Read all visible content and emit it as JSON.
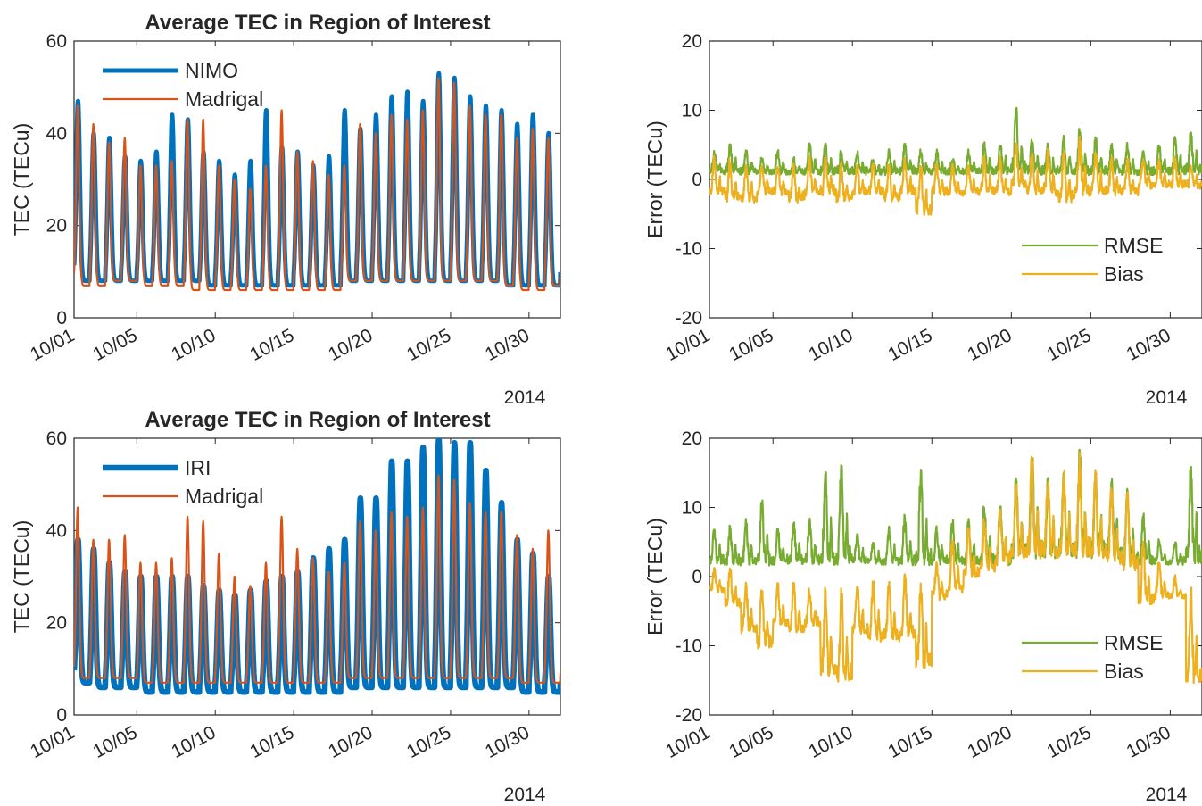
{
  "chart_data": [
    {
      "type": "line",
      "title": "Average TEC in Region of Interest",
      "ylabel": "TEC (TECu)",
      "xlabel": "",
      "x_year": "2014",
      "xlim": [
        "2014-10-01",
        "2014-11-01"
      ],
      "ylim": [
        0,
        60
      ],
      "yticks": [
        "0",
        "20",
        "40",
        "60"
      ],
      "xtick_labels": [
        "10/01",
        "10/05",
        "10/10",
        "10/15",
        "10/20",
        "10/25",
        "10/30"
      ],
      "xtick_days": [
        1,
        5,
        10,
        15,
        20,
        25,
        30
      ],
      "legend_position": "top-left",
      "series": [
        {
          "name": "NIMO",
          "color": "#0072BD",
          "daily_peak": [
            47,
            40,
            39,
            35,
            34,
            36,
            44,
            43,
            36,
            34,
            31,
            34,
            45,
            37,
            36,
            33,
            35,
            45,
            41,
            44,
            48,
            49,
            47,
            53,
            52,
            48,
            46,
            45,
            42,
            44,
            40
          ],
          "daily_min": [
            8,
            8,
            8,
            8,
            8,
            8,
            8,
            8,
            7,
            7,
            7,
            7,
            7,
            7,
            7,
            7,
            7,
            8,
            8,
            8,
            8,
            8,
            8,
            8,
            8,
            8,
            8,
            7,
            7,
            7,
            7
          ]
        },
        {
          "name": "Madrigal",
          "color": "#D95319",
          "daily_peak": [
            46,
            42,
            38,
            39,
            33,
            33,
            34,
            43,
            43,
            33,
            30,
            28,
            33,
            45,
            36,
            34,
            31,
            33,
            42,
            40,
            44,
            43,
            45,
            52,
            51,
            46,
            44,
            44,
            39,
            41,
            39
          ],
          "daily_min": [
            7,
            7,
            8,
            8,
            7,
            7,
            7,
            6,
            6,
            6,
            6,
            6,
            6,
            6,
            6,
            6,
            6,
            8,
            8,
            8,
            8,
            8,
            8,
            8,
            8,
            8,
            8,
            7,
            6,
            6,
            7
          ]
        }
      ]
    },
    {
      "type": "line",
      "title": "",
      "ylabel": "Error (TECu)",
      "xlabel": "",
      "x_year": "2014",
      "xlim": [
        "2014-10-01",
        "2014-11-01"
      ],
      "ylim": [
        -20,
        20
      ],
      "yticks": [
        "-20",
        "-10",
        "0",
        "10",
        "20"
      ],
      "xtick_labels": [
        "10/01",
        "10/05",
        "10/10",
        "10/15",
        "10/20",
        "10/25",
        "10/30"
      ],
      "xtick_days": [
        1,
        5,
        10,
        15,
        20,
        25,
        30
      ],
      "legend_position": "bottom-right",
      "series": [
        {
          "name": "RMSE",
          "color": "#77AC30",
          "daily_peak": [
            4,
            5,
            4,
            3,
            4,
            3,
            5,
            5,
            4,
            4,
            3,
            4,
            5,
            4,
            4,
            3,
            4,
            5,
            5,
            10,
            6,
            5,
            6,
            7,
            6,
            5,
            5,
            4,
            5,
            6,
            7
          ],
          "daily_min": [
            1,
            1,
            1,
            1,
            1,
            1,
            1,
            1,
            1,
            1,
            1,
            1,
            1,
            1,
            1,
            1,
            1,
            1,
            1,
            1,
            1,
            1,
            1,
            1,
            1,
            1,
            1,
            1,
            1,
            1,
            1
          ]
        },
        {
          "name": "Bias",
          "color": "#EDB120",
          "daily_peak": [
            3,
            3,
            2,
            2,
            2,
            2,
            3,
            3,
            2,
            2,
            2,
            2,
            3,
            2,
            2,
            2,
            2,
            3,
            3,
            5,
            4,
            4,
            4,
            6,
            4,
            3,
            3,
            3,
            3,
            3,
            2
          ],
          "daily_min": [
            -2,
            -3,
            -3,
            -2,
            -2,
            -3,
            -2,
            -2,
            -3,
            -2,
            -2,
            -3,
            -2,
            -5,
            -2,
            -2,
            -2,
            -2,
            -2,
            -1,
            -2,
            -2,
            -3,
            -2,
            -2,
            -2,
            -2,
            -1,
            -1,
            -1,
            -1
          ]
        }
      ]
    },
    {
      "type": "line",
      "title": "Average TEC in Region of Interest",
      "ylabel": "TEC (TECu)",
      "xlabel": "",
      "x_year": "2014",
      "xlim": [
        "2014-10-01",
        "2014-11-01"
      ],
      "ylim": [
        0,
        60
      ],
      "yticks": [
        "0",
        "20",
        "40",
        "60"
      ],
      "xtick_labels": [
        "10/01",
        "10/05",
        "10/10",
        "10/15",
        "10/20",
        "10/25",
        "10/30"
      ],
      "xtick_days": [
        1,
        5,
        10,
        15,
        20,
        25,
        30
      ],
      "legend_position": "top-left",
      "series": [
        {
          "name": "IRI",
          "color": "#0072BD",
          "daily_peak": [
            38,
            36,
            33,
            31,
            30,
            30,
            30,
            30,
            28,
            27,
            26,
            27,
            29,
            30,
            31,
            34,
            36,
            38,
            47,
            47,
            55,
            55,
            58,
            60,
            59,
            59,
            53,
            46,
            38,
            35,
            30
          ],
          "daily_min": [
            7,
            6,
            6,
            6,
            5,
            5,
            5,
            5,
            5,
            5,
            5,
            5,
            5,
            5,
            5,
            5,
            5,
            6,
            6,
            6,
            6,
            6,
            6,
            6,
            6,
            6,
            6,
            6,
            5,
            5,
            5
          ]
        },
        {
          "name": "Madrigal",
          "color": "#D95319",
          "daily_peak": [
            45,
            38,
            38,
            39,
            33,
            33,
            34,
            43,
            42,
            35,
            30,
            28,
            33,
            43,
            36,
            34,
            31,
            33,
            42,
            40,
            44,
            43,
            45,
            52,
            51,
            46,
            44,
            44,
            39,
            36,
            40
          ],
          "daily_min": [
            8,
            8,
            8,
            8,
            7,
            7,
            7,
            7,
            7,
            7,
            7,
            7,
            7,
            7,
            7,
            7,
            7,
            8,
            8,
            8,
            8,
            8,
            8,
            8,
            8,
            8,
            8,
            8,
            7,
            7,
            7
          ]
        }
      ]
    },
    {
      "type": "line",
      "title": "",
      "ylabel": "Error (TECu)",
      "xlabel": "",
      "x_year": "2014",
      "xlim": [
        "2014-10-01",
        "2014-11-01"
      ],
      "ylim": [
        -20,
        20
      ],
      "yticks": [
        "-20",
        "-10",
        "0",
        "10",
        "20"
      ],
      "xtick_labels": [
        "10/01",
        "10/05",
        "10/10",
        "10/15",
        "10/20",
        "10/25",
        "10/30"
      ],
      "xtick_days": [
        1,
        5,
        10,
        15,
        20,
        25,
        30
      ],
      "legend_position": "bottom-right",
      "series": [
        {
          "name": "RMSE",
          "color": "#77AC30",
          "daily_peak": [
            7,
            7,
            8,
            11,
            7,
            8,
            8,
            15,
            16,
            6,
            5,
            7,
            9,
            15,
            7,
            8,
            8,
            10,
            10,
            14,
            18,
            14,
            15,
            18,
            15,
            14,
            13,
            9,
            5,
            5,
            16
          ],
          "daily_min": [
            2,
            2,
            2,
            2,
            2,
            2,
            2,
            2,
            2,
            2,
            2,
            2,
            2,
            2,
            2,
            2,
            2,
            2,
            2,
            3,
            3,
            3,
            3,
            3,
            3,
            3,
            2,
            2,
            2,
            2,
            2
          ]
        },
        {
          "name": "Bias",
          "color": "#EDB120",
          "daily_peak": [
            1,
            1,
            -1,
            -2,
            -1,
            -1,
            -2,
            -2,
            -2,
            -1,
            -1,
            -1,
            0,
            -1,
            2,
            5,
            7,
            8,
            10,
            13,
            17,
            14,
            15,
            18,
            15,
            13,
            12,
            5,
            2,
            0,
            -2
          ],
          "daily_min": [
            -2,
            -4,
            -8,
            -10,
            -7,
            -8,
            -7,
            -14,
            -15,
            -8,
            -9,
            -9,
            -9,
            -13,
            -3,
            -2,
            0,
            1,
            2,
            3,
            3,
            3,
            3,
            3,
            3,
            2,
            1,
            -4,
            -3,
            -3,
            -15
          ]
        }
      ]
    }
  ]
}
